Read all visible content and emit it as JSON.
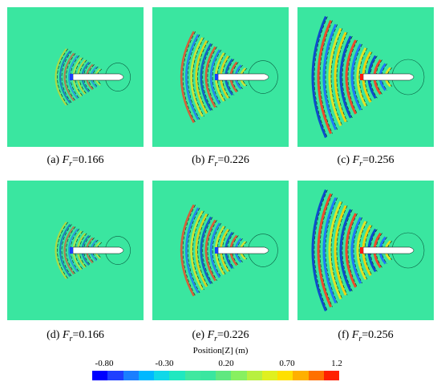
{
  "panels": [
    {
      "label": "(a) ",
      "froude": "=0.166",
      "intensity": 0.45,
      "spread": 0.35
    },
    {
      "label": "(b) ",
      "froude": "=0.226",
      "intensity": 0.8,
      "spread": 0.6
    },
    {
      "label": "(c) ",
      "froude": "=0.256",
      "intensity": 1.0,
      "spread": 0.78
    },
    {
      "label": "(d) ",
      "froude": "=0.166",
      "intensity": 0.45,
      "spread": 0.35
    },
    {
      "label": "(e) ",
      "froude": "=0.226",
      "intensity": 0.8,
      "spread": 0.6
    },
    {
      "label": "(f) ",
      "froude": "=0.256",
      "intensity": 1.0,
      "spread": 0.78
    }
  ],
  "froude_symbol": "F",
  "froude_subscript": "r",
  "colorbar": {
    "title": "Position[Z] (m)",
    "ticks": [
      "-0.80",
      "-0.30",
      "0.20",
      "0.70",
      "1.2"
    ],
    "colors": [
      "#0000ff",
      "#1f3fff",
      "#1a7fff",
      "#00b8ff",
      "#10d8e8",
      "#20e8c0",
      "#40e8a0",
      "#3ae6a0",
      "#60e880",
      "#88f060",
      "#b8f040",
      "#e0f020",
      "#ffe000",
      "#ffb000",
      "#ff7000",
      "#ff2000"
    ],
    "background_color": "#3ae6a0"
  }
}
